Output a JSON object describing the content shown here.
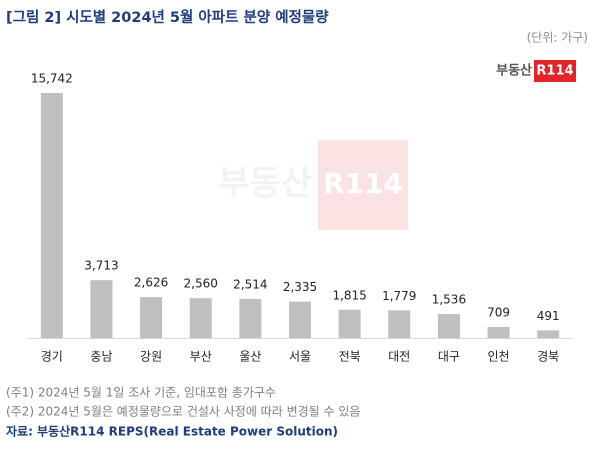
{
  "chart_data": {
    "type": "bar",
    "title": "[그림 2] 시도별 2024년 5월 아파트 분양 예정물량",
    "unit": "(단위: 가구)",
    "logo_text": "부동산",
    "logo_badge": "R114",
    "categories": [
      "경기",
      "충남",
      "강원",
      "부산",
      "울산",
      "서울",
      "전북",
      "대전",
      "대구",
      "인천",
      "경북"
    ],
    "values": [
      15742,
      3713,
      2626,
      2560,
      2514,
      2335,
      1815,
      1779,
      1536,
      709,
      491
    ],
    "value_labels": [
      "15,742",
      "3,713",
      "2,626",
      "2,560",
      "2,514",
      "2,335",
      "1,815",
      "1,779",
      "1,536",
      "709",
      "491"
    ],
    "color": "#bfbfbf",
    "ylim": [
      0,
      16000
    ],
    "notes": [
      "(주1) 2024년 5월 1일 조사 기준, 임대포함 총가구수",
      "(주2) 2024년 5월은 예정물량으로 건설사 사정에 따라 변경될 수 있음"
    ],
    "source": "자료: 부동산R114 REPS(Real Estate Power Solution)"
  }
}
